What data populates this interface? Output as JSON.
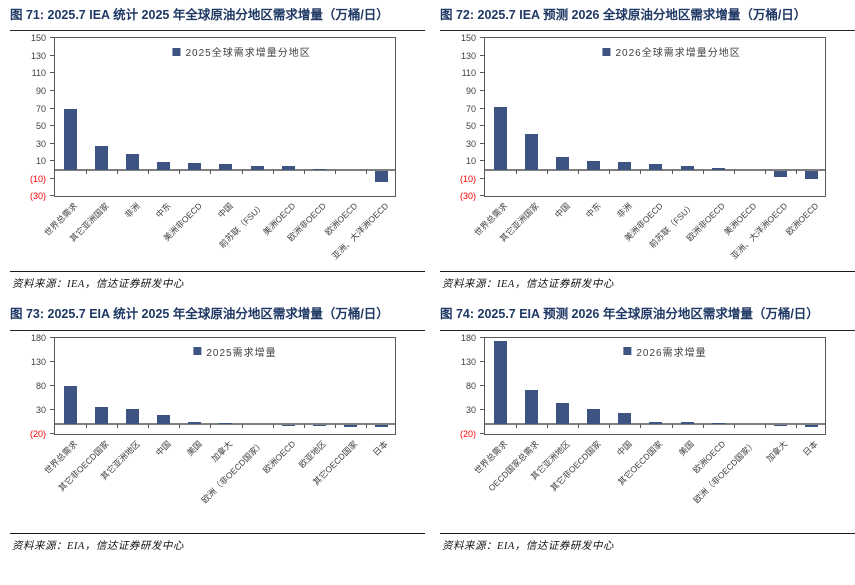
{
  "colors": {
    "bar": "#3D5382",
    "title": "#1F3864",
    "negative_tick": "#FF0000",
    "axis_zero_line": "#808080",
    "frame": "#595959"
  },
  "chart_data": [
    {
      "type": "bar",
      "title": "图 71: 2025.7 IEA 统计 2025 年全球原油分地区需求增量（万桶/日）",
      "legend": "2025全球需求增量分地区",
      "source": "资料来源：IEA，信达证券研发中心",
      "categories": [
        "世界总需求",
        "其它亚洲国家",
        "非洲",
        "中东",
        "美洲非OECD",
        "中国",
        "前苏联（FSU）",
        "美洲OECD",
        "欧洲非OECD",
        "欧洲OECD",
        "亚洲、大洋洲OECD"
      ],
      "values": [
        70,
        27,
        18,
        9,
        8,
        7,
        5,
        4,
        1,
        0,
        -12
      ],
      "ylim": [
        -30,
        150
      ],
      "yticks": [
        150,
        130,
        110,
        90,
        70,
        50,
        30,
        10,
        -10,
        -30
      ],
      "xlabel": "",
      "ylabel": "",
      "grid": false,
      "legend_position": "top-center"
    },
    {
      "type": "bar",
      "title": "图 72: 2025.7 IEA 预测 2026 全球原油分地区需求增量（万桶/日）",
      "legend": "2026全球需求增量分地区",
      "source": "资料来源：IEA，信达证券研发中心",
      "categories": [
        "世界总需求",
        "其它亚洲国家",
        "中国",
        "中东",
        "非洲",
        "美洲非OECD",
        "前苏联（FSU）",
        "欧洲非OECD",
        "美洲OECD",
        "亚洲、大洋洲OECD",
        "欧洲OECD"
      ],
      "values": [
        72,
        41,
        15,
        10,
        9,
        7,
        5,
        2,
        0,
        -7,
        -9
      ],
      "ylim": [
        -30,
        150
      ],
      "yticks": [
        150,
        130,
        110,
        90,
        70,
        50,
        30,
        10,
        -10,
        -30
      ],
      "xlabel": "",
      "ylabel": "",
      "grid": false,
      "legend_position": "top-center"
    },
    {
      "type": "bar",
      "title": "图 73: 2025.7 EIA 统计 2025 年全球原油分地区需求增量（万桶/日）",
      "legend": "2025需求增量",
      "source": "资料来源：EIA，信达证券研发中心",
      "categories": [
        "世界总需求",
        "其它非OECD国家",
        "其它亚洲地区",
        "中国",
        "美国",
        "加拿大",
        "欧洲（非OECD国家）",
        "欧洲OECD",
        "欧亚地区",
        "其它OECD国家",
        "日本"
      ],
      "values": [
        80,
        36,
        32,
        18,
        5,
        1,
        0,
        -1,
        -2,
        -5,
        -5
      ],
      "ylim": [
        -20,
        180
      ],
      "yticks": [
        180,
        130,
        80,
        30,
        -20
      ],
      "xlabel": "",
      "ylabel": "",
      "grid": false,
      "legend_position": "top-center"
    },
    {
      "type": "bar",
      "title": "图 74: 2025.7 EIA 预测 2026 年全球原油分地区需求增量（万桶/日）",
      "legend": "2026需求增量",
      "source": "资料来源：EIA，信达证券研发中心",
      "categories": [
        "世界总需求",
        "OECD国家总需求",
        "其它亚洲地区",
        "其它非OECD国家",
        "中国",
        "其它OECD国家",
        "美国",
        "欧洲OECD",
        "欧洲（非OECD国家）",
        "加拿大",
        "日本"
      ],
      "values": [
        172,
        70,
        43,
        31,
        23,
        4,
        4,
        3,
        0,
        -1,
        -4
      ],
      "ylim": [
        -20,
        180
      ],
      "yticks": [
        180,
        130,
        80,
        30,
        -20
      ],
      "xlabel": "",
      "ylabel": "",
      "grid": false,
      "legend_position": "top-center"
    }
  ]
}
